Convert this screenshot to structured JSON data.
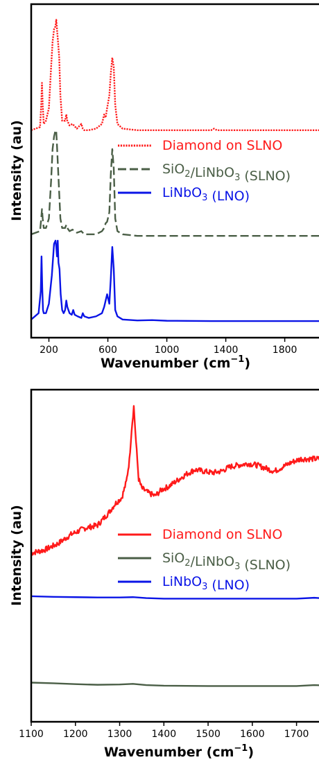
{
  "colors": {
    "diamond": "#ff1a1a",
    "sio2": "#4a5e46",
    "lno": "#0a14e6"
  },
  "chart_data": [
    {
      "type": "line",
      "xlabel": "Wavenumber (cm",
      "xlabel_sup": "−1",
      "xlabel_close": ")",
      "ylabel": "Intensity (au)",
      "xlim": [
        80,
        2150
      ],
      "ylim": [
        0,
        1
      ],
      "xticks": [
        200,
        600,
        1000,
        1400,
        1800
      ],
      "xtick_labels": [
        "200",
        "600",
        "1000",
        "1400",
        "1800"
      ],
      "y_ticks_shown": false,
      "legend": {
        "position": "center-right",
        "entries": [
          {
            "text": "Diamond on SLNO",
            "style": "dotted",
            "color": "#ff1a1a"
          },
          {
            "base": "SiO",
            "sub1": "2",
            "mid": "/LiNbO",
            "sub2": "3",
            "tail": " (SLNO)",
            "style": "dashed",
            "color": "#4a5e46"
          },
          {
            "base": "LiNbO",
            "sub1": "3",
            "tail": " (LNO)",
            "style": "solid",
            "color": "#0a14e6"
          }
        ]
      },
      "series": [
        {
          "style": "dotted",
          "color": "#ff1a1a",
          "x": [
            80,
            140,
            148,
            153,
            158,
            165,
            180,
            200,
            215,
            225,
            235,
            245,
            250,
            255,
            262,
            270,
            278,
            290,
            310,
            318,
            325,
            340,
            360,
            390,
            420,
            430,
            440,
            470,
            520,
            560,
            575,
            585,
            595,
            610,
            620,
            630,
            640,
            650,
            665,
            700,
            800,
            1000,
            1300,
            1320,
            1340,
            1500,
            1800,
            2150
          ],
          "y": [
            0.64,
            0.65,
            0.72,
            0.79,
            0.72,
            0.66,
            0.67,
            0.71,
            0.84,
            0.92,
            0.96,
            0.97,
            0.99,
            0.96,
            0.92,
            0.87,
            0.75,
            0.67,
            0.67,
            0.69,
            0.67,
            0.655,
            0.66,
            0.645,
            0.66,
            0.645,
            0.64,
            0.64,
            0.645,
            0.66,
            0.69,
            0.68,
            0.71,
            0.75,
            0.82,
            0.87,
            0.84,
            0.72,
            0.66,
            0.645,
            0.64,
            0.64,
            0.64,
            0.645,
            0.64,
            0.64,
            0.64,
            0.64
          ]
        },
        {
          "style": "dashed",
          "color": "#4a5e46",
          "x": [
            80,
            140,
            148,
            153,
            158,
            165,
            180,
            200,
            215,
            225,
            235,
            245,
            250,
            255,
            262,
            270,
            278,
            290,
            310,
            318,
            325,
            340,
            360,
            390,
            420,
            430,
            440,
            470,
            520,
            560,
            575,
            585,
            595,
            610,
            620,
            630,
            640,
            650,
            665,
            700,
            800,
            1000,
            1300,
            1500,
            1800,
            2150
          ],
          "y": [
            0.31,
            0.32,
            0.36,
            0.39,
            0.36,
            0.33,
            0.33,
            0.36,
            0.48,
            0.58,
            0.62,
            0.64,
            0.635,
            0.59,
            0.52,
            0.44,
            0.36,
            0.33,
            0.33,
            0.34,
            0.33,
            0.32,
            0.325,
            0.315,
            0.32,
            0.315,
            0.31,
            0.31,
            0.31,
            0.32,
            0.33,
            0.345,
            0.35,
            0.38,
            0.5,
            0.58,
            0.52,
            0.36,
            0.32,
            0.31,
            0.305,
            0.305,
            0.305,
            0.305,
            0.305,
            0.305
          ]
        },
        {
          "style": "solid",
          "color": "#0a14e6",
          "x": [
            80,
            130,
            145,
            150,
            155,
            160,
            165,
            180,
            200,
            220,
            235,
            245,
            250,
            255,
            260,
            265,
            272,
            280,
            290,
            300,
            310,
            318,
            325,
            340,
            355,
            365,
            375,
            395,
            420,
            430,
            440,
            470,
            520,
            560,
            575,
            585,
            595,
            610,
            620,
            630,
            640,
            650,
            665,
            700,
            800,
            900,
            1000,
            1300,
            1800,
            2150
          ],
          "y": [
            0.04,
            0.06,
            0.13,
            0.24,
            0.14,
            0.07,
            0.06,
            0.06,
            0.09,
            0.18,
            0.28,
            0.29,
            0.27,
            0.24,
            0.29,
            0.22,
            0.2,
            0.12,
            0.07,
            0.06,
            0.07,
            0.1,
            0.08,
            0.06,
            0.055,
            0.07,
            0.055,
            0.05,
            0.045,
            0.06,
            0.05,
            0.045,
            0.05,
            0.06,
            0.08,
            0.1,
            0.12,
            0.09,
            0.17,
            0.27,
            0.2,
            0.07,
            0.05,
            0.04,
            0.037,
            0.038,
            0.036,
            0.035,
            0.035,
            0.035
          ]
        }
      ]
    },
    {
      "type": "line",
      "xlabel": "Wavenumber (cm",
      "xlabel_sup": "−1",
      "xlabel_close": ")",
      "ylabel": "Intensity (au)",
      "xlim": [
        1100,
        1790
      ],
      "ylim": [
        0,
        1
      ],
      "xticks": [
        1100,
        1200,
        1300,
        1400,
        1500,
        1600,
        1700
      ],
      "xtick_labels": [
        "1100",
        "1200",
        "1300",
        "1400",
        "1500",
        "1600",
        "1700"
      ],
      "y_ticks_shown": false,
      "legend": {
        "position": "center-right",
        "entries": [
          {
            "text": "Diamond on SLNO",
            "style": "solid",
            "color": "#ff1a1a"
          },
          {
            "base": "SiO",
            "sub1": "2",
            "mid": "/LiNbO",
            "sub2": "3",
            "tail": " (SLNO)",
            "style": "solid",
            "color": "#4a5e46"
          },
          {
            "base": "LiNbO",
            "sub1": "3",
            "tail": " (LNO)",
            "style": "solid",
            "color": "#0a14e6"
          }
        ]
      },
      "series": [
        {
          "style": "solid",
          "color": "#ff1a1a",
          "noisy": true,
          "x": [
            1100,
            1130,
            1160,
            1190,
            1220,
            1250,
            1275,
            1290,
            1305,
            1315,
            1322,
            1327,
            1332,
            1337,
            1343,
            1350,
            1365,
            1380,
            1395,
            1410,
            1430,
            1450,
            1470,
            1490,
            1510,
            1530,
            1550,
            1570,
            1590,
            1610,
            1630,
            1650,
            1670,
            1690,
            1710,
            1730,
            1760,
            1790
          ],
          "y": [
            0.52,
            0.53,
            0.55,
            0.58,
            0.6,
            0.61,
            0.65,
            0.68,
            0.7,
            0.75,
            0.82,
            0.92,
            0.995,
            0.88,
            0.76,
            0.73,
            0.715,
            0.705,
            0.725,
            0.735,
            0.755,
            0.775,
            0.79,
            0.785,
            0.78,
            0.785,
            0.8,
            0.805,
            0.81,
            0.805,
            0.795,
            0.785,
            0.8,
            0.815,
            0.825,
            0.825,
            0.825,
            0.83
          ]
        },
        {
          "style": "solid",
          "color": "#4a5e46",
          "x": [
            1100,
            1150,
            1200,
            1250,
            1300,
            1330,
            1360,
            1400,
            1500,
            1600,
            1700,
            1740,
            1760,
            1790
          ],
          "y": [
            0.1,
            0.098,
            0.095,
            0.093,
            0.094,
            0.096,
            0.092,
            0.09,
            0.089,
            0.089,
            0.089,
            0.092,
            0.091,
            0.09
          ]
        },
        {
          "style": "solid",
          "color": "#0a14e6",
          "x": [
            1100,
            1150,
            1200,
            1250,
            1300,
            1330,
            1360,
            1400,
            1500,
            1600,
            1700,
            1740,
            1760,
            1790
          ],
          "y": [
            0.38,
            0.378,
            0.377,
            0.376,
            0.376,
            0.377,
            0.374,
            0.372,
            0.372,
            0.372,
            0.372,
            0.375,
            0.373,
            0.372
          ]
        }
      ]
    }
  ]
}
